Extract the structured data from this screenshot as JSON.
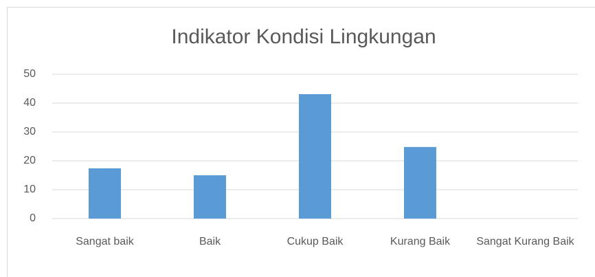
{
  "chart_data": {
    "type": "bar",
    "title": "Indikator Kondisi Lingkungan",
    "categories": [
      "Sangat baik",
      "Baik",
      "Cukup Baik",
      "Kurang Baik",
      "Sangat Kurang Baik"
    ],
    "values": [
      17.4,
      15,
      43.1,
      24.8,
      0
    ],
    "color": "#5b9bd5",
    "ylim": [
      0,
      50
    ],
    "yticks": [
      0,
      10,
      20,
      30,
      40,
      50
    ],
    "grid": true
  }
}
